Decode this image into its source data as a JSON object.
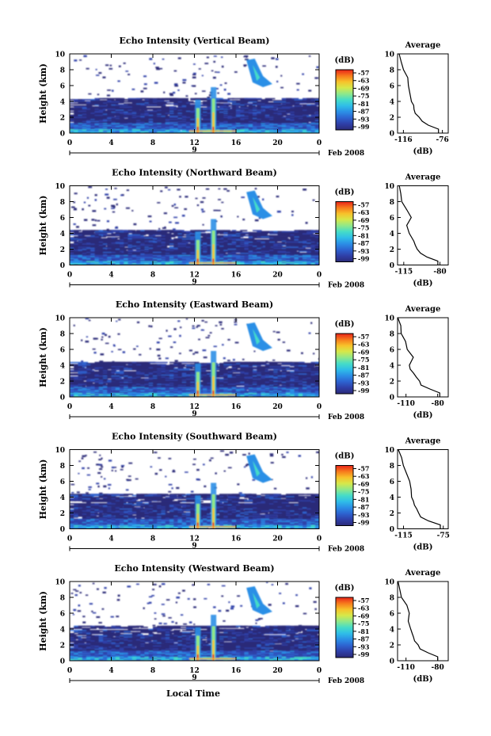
{
  "x_axis_label": "Local Time",
  "colorbar": {
    "unit": "(dB)",
    "ticks": [
      "-57",
      "-63",
      "-69",
      "-75",
      "-81",
      "-87",
      "-93",
      "-99"
    ],
    "colors": [
      "#2b2a78",
      "#2f3fa8",
      "#2d63d0",
      "#2b8fe6",
      "#2fbde8",
      "#45dcc8",
      "#8fe88a",
      "#d6e84a",
      "#f7c22a",
      "#f77a1c",
      "#e8231a"
    ]
  },
  "chart_data": [
    {
      "type": "heatmap",
      "title": "Echo Intensity (Vertical Beam)",
      "ylabel": "Height (km)",
      "xlim": [
        0,
        24
      ],
      "ylim": [
        0,
        10
      ],
      "xticks": [
        "0",
        "4",
        "8",
        "12",
        "16",
        "20",
        "0"
      ],
      "yticks": [
        "0",
        "2",
        "4",
        "6",
        "8",
        "10"
      ],
      "date_label": "9",
      "month_label": "Feb 2008",
      "average": {
        "title": "Average",
        "xlabel": "(dB)",
        "xticks": [
          "-116",
          "-76"
        ],
        "xlim": [
          -122,
          -70
        ],
        "heights": [
          0.5,
          1,
          1.5,
          2,
          2.5,
          3,
          3.5,
          4,
          5,
          6,
          7,
          8,
          9,
          10
        ],
        "values": [
          -80,
          -90,
          -97,
          -100,
          -103,
          -105,
          -106,
          -108,
          -110,
          -110,
          -112,
          -117,
          -119,
          -121
        ]
      }
    },
    {
      "type": "heatmap",
      "title": "Echo Intensity (Northward Beam)",
      "ylabel": "Height (km)",
      "xlim": [
        0,
        24
      ],
      "ylim": [
        0,
        10
      ],
      "xticks": [
        "0",
        "4",
        "8",
        "12",
        "16",
        "20",
        "0"
      ],
      "yticks": [
        "0",
        "2",
        "4",
        "6",
        "8",
        "10"
      ],
      "date_label": "9",
      "month_label": "Feb 2008",
      "average": {
        "title": "Average",
        "xlabel": "(dB)",
        "xticks": [
          "-115",
          "-80"
        ],
        "xlim": [
          -121,
          -72
        ],
        "heights": [
          0.5,
          1,
          1.5,
          2,
          2.5,
          3,
          3.5,
          4,
          5,
          6,
          7,
          8,
          9,
          10
        ],
        "values": [
          -82,
          -92,
          -98,
          -101,
          -104,
          -106,
          -108,
          -110,
          -112,
          -108,
          -112,
          -117,
          -119,
          -120
        ]
      }
    },
    {
      "type": "heatmap",
      "title": "Echo Intensity (Eastward Beam)",
      "ylabel": "Height (km)",
      "xlim": [
        0,
        24
      ],
      "ylim": [
        0,
        10
      ],
      "xticks": [
        "0",
        "4",
        "8",
        "12",
        "16",
        "20",
        "0"
      ],
      "yticks": [
        "0",
        "2",
        "4",
        "6",
        "8",
        "10"
      ],
      "date_label": "9",
      "month_label": "Feb 2008",
      "average": {
        "title": "Average",
        "xlabel": "(dB)",
        "xticks": [
          "-110",
          "-80"
        ],
        "xlim": [
          -118,
          -70
        ],
        "heights": [
          0.5,
          1,
          1.5,
          2,
          2.5,
          3,
          3.5,
          4,
          5,
          6,
          7,
          8,
          9,
          10
        ],
        "values": [
          -78,
          -88,
          -95,
          -98,
          -101,
          -103,
          -105,
          -107,
          -104,
          -108,
          -110,
          -114,
          -116,
          -117
        ]
      }
    },
    {
      "type": "heatmap",
      "title": "Echo Intensity (Southward Beam)",
      "ylabel": "Height (km)",
      "xlim": [
        0,
        24
      ],
      "ylim": [
        0,
        10
      ],
      "xticks": [
        "0",
        "4",
        "8",
        "12",
        "16",
        "20",
        "0"
      ],
      "yticks": [
        "0",
        "2",
        "4",
        "6",
        "8",
        "10"
      ],
      "date_label": "9",
      "month_label": "Feb 2008",
      "average": {
        "title": "Average",
        "xlabel": "(dB)",
        "xticks": [
          "-115",
          "-75"
        ],
        "xlim": [
          -121,
          -70
        ],
        "heights": [
          0.5,
          1,
          1.5,
          2,
          2.5,
          3,
          3.5,
          4,
          5,
          6,
          7,
          8,
          9,
          10
        ],
        "values": [
          -78,
          -90,
          -97,
          -100,
          -102,
          -104,
          -106,
          -107,
          -108,
          -110,
          -112,
          -116,
          -118,
          -120
        ]
      }
    },
    {
      "type": "heatmap",
      "title": "Echo Intensity (Westward Beam)",
      "ylabel": "Height (km)",
      "xlim": [
        0,
        24
      ],
      "ylim": [
        0,
        10
      ],
      "xticks": [
        "0",
        "4",
        "8",
        "12",
        "16",
        "20",
        "0"
      ],
      "yticks": [
        "0",
        "2",
        "4",
        "6",
        "8",
        "10"
      ],
      "date_label": "9",
      "month_label": "Feb 2008",
      "average": {
        "title": "Average",
        "xlabel": "(dB)",
        "xticks": [
          "-110",
          "-80"
        ],
        "xlim": [
          -118,
          -70
        ],
        "heights": [
          0.5,
          1,
          1.5,
          2,
          2.5,
          3,
          3.5,
          4,
          5,
          6,
          7,
          8,
          9,
          10
        ],
        "values": [
          -80,
          -90,
          -96,
          -99,
          -102,
          -103,
          -104,
          -106,
          -108,
          -108,
          -110,
          -114,
          -116,
          -117
        ]
      }
    }
  ]
}
